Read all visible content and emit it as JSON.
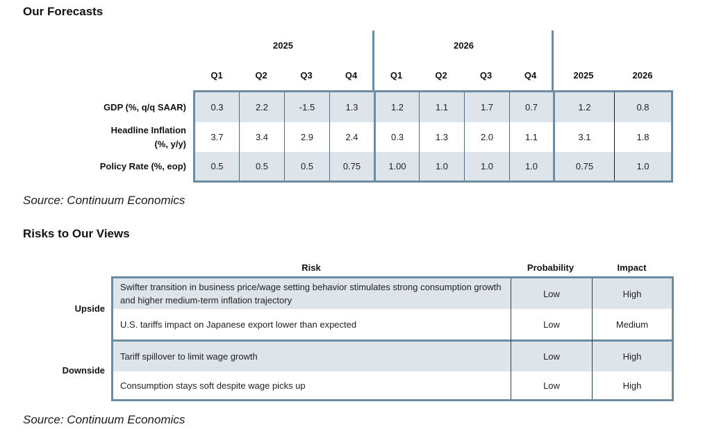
{
  "forecasts": {
    "title": "Our Forecasts",
    "year_headers": [
      "2025",
      "2026"
    ],
    "quarter_headers": [
      "Q1",
      "Q2",
      "Q3",
      "Q4",
      "Q1",
      "Q2",
      "Q3",
      "Q4"
    ],
    "annual_headers": [
      "2025",
      "2026"
    ],
    "rows": [
      {
        "label": "GDP (%, q/q SAAR)",
        "values": [
          "0.3",
          "2.2",
          "-1.5",
          "1.3",
          "1.2",
          "1.1",
          "1.7",
          "0.7",
          "1.2",
          "0.8"
        ]
      },
      {
        "label_line1": "Headline Inflation",
        "label_line2": "(%, y/y)",
        "values": [
          "3.7",
          "3.4",
          "2.9",
          "2.4",
          "0.3",
          "1.3",
          "2.0",
          "1.1",
          "3.1",
          "1.8"
        ]
      },
      {
        "label": "Policy Rate (%, eop)",
        "values": [
          "0.5",
          "0.5",
          "0.5",
          "0.75",
          "1.00",
          "1.0",
          "1.0",
          "1.0",
          "0.75",
          "1.0"
        ]
      }
    ],
    "source": "Source: Continuum Economics"
  },
  "risks": {
    "title": "Risks to Our Views",
    "headers": {
      "risk": "Risk",
      "probability": "Probability",
      "impact": "Impact"
    },
    "groups": [
      {
        "name": "Upside",
        "items": [
          {
            "risk": "Swifter transition in business price/wage setting behavior stimulates strong consumption growth and higher medium-term inflation trajectory",
            "probability": "Low",
            "impact": "High"
          },
          {
            "risk": "U.S. tariffs impact on Japanese export lower than expected",
            "probability": "Low",
            "impact": "Medium"
          }
        ]
      },
      {
        "name": "Downside",
        "items": [
          {
            "risk": "Tariff spillover to limit wage growth",
            "probability": "Low",
            "impact": "High"
          },
          {
            "risk": "Consumption stays soft despite wage picks up",
            "probability": "Low",
            "impact": "High"
          }
        ]
      }
    ],
    "source": "Source: Continuum Economics"
  },
  "colors": {
    "border": "#6d8ca2",
    "row_shade": "#dde4ea"
  }
}
